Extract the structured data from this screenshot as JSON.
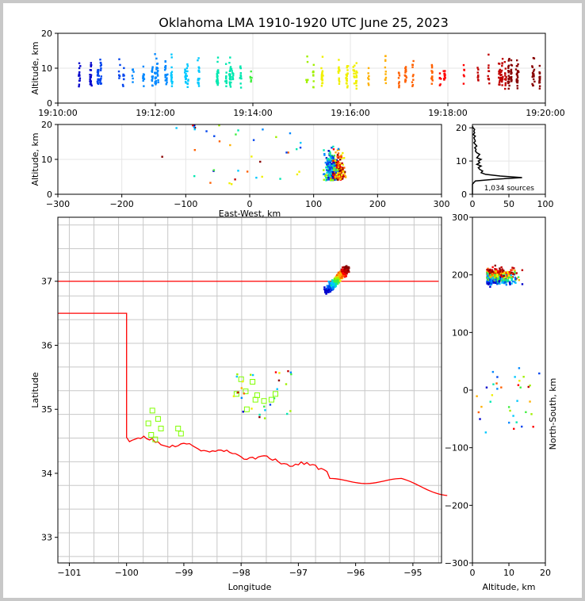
{
  "title": "Oklahoma LMA 1910-1920 UTC June 25, 2023",
  "colors": {
    "time_palette": [
      "#0000cc",
      "#0044ee",
      "#0088ff",
      "#00c8ff",
      "#00e8b0",
      "#40f040",
      "#a0f000",
      "#f0f000",
      "#ffb000",
      "#ff6000",
      "#ff0000",
      "#c00000",
      "#880000"
    ],
    "state_border": "#ff0000",
    "county": "#c8c8c8",
    "station": "#80ff00",
    "histogram": "#000000"
  },
  "chart_data": [
    {
      "id": "time_altitude",
      "type": "scatter",
      "ylabel": "Altitude, km",
      "xlabel": "",
      "xlim": [
        "19:10:00",
        "19:20:00"
      ],
      "ylim": [
        0,
        20
      ],
      "x_ticks": [
        "19:10:00",
        "19:12:00",
        "19:14:00",
        "19:16:00",
        "19:18:00",
        "19:20:00"
      ],
      "y_ticks": [
        0,
        10,
        20
      ],
      "grid": true
    },
    {
      "id": "ew_altitude",
      "type": "scatter",
      "xlabel": "East-West, km",
      "ylabel": "Altitude, km",
      "xlim": [
        -300,
        300
      ],
      "ylim": [
        0,
        20
      ],
      "x_ticks": [
        -300,
        -200,
        -100,
        0,
        100,
        200,
        300
      ],
      "y_ticks": [
        0,
        10,
        20
      ],
      "grid": true
    },
    {
      "id": "altitude_histogram",
      "type": "line",
      "xlim": [
        0,
        100
      ],
      "ylim": [
        0,
        21
      ],
      "x_ticks": [
        0,
        50,
        100
      ],
      "y_ticks": [
        0,
        10,
        20
      ],
      "annotation": "1,034 sources",
      "profile": {
        "altitudes": [
          0,
          1,
          2,
          3,
          3.5,
          4,
          4.5,
          5,
          5.5,
          6,
          6.5,
          7,
          7.5,
          8,
          8.5,
          9,
          9.5,
          10,
          10.5,
          11,
          11.5,
          12,
          12.5,
          13,
          13.5,
          14,
          14.5,
          15,
          15.5,
          16,
          16.5,
          17,
          17.5,
          18,
          18.5,
          19,
          19.5,
          20,
          20.5
        ],
        "counts": [
          0,
          0,
          0,
          0,
          2,
          4,
          30,
          68,
          38,
          18,
          12,
          14,
          10,
          8,
          12,
          6,
          10,
          8,
          12,
          6,
          8,
          10,
          6,
          4,
          5,
          3,
          6,
          4,
          2,
          4,
          3,
          2,
          4,
          1,
          3,
          2,
          3,
          1,
          0
        ]
      }
    },
    {
      "id": "plan_map",
      "type": "scatter",
      "xlabel": "Longitude",
      "ylabel": "Latitude",
      "xlim": [
        -101.2,
        -94.5
      ],
      "ylim": [
        32.6,
        38
      ],
      "x_ticks": [
        -101,
        -100,
        -99,
        -98,
        -97,
        -96,
        -95
      ],
      "y_ticks": [
        33,
        34,
        35,
        36,
        37
      ],
      "stations": [
        {
          "lon": -99.55,
          "lat": 34.98
        },
        {
          "lon": -99.45,
          "lat": 34.85
        },
        {
          "lon": -99.62,
          "lat": 34.78
        },
        {
          "lon": -99.4,
          "lat": 34.7
        },
        {
          "lon": -99.57,
          "lat": 34.6
        },
        {
          "lon": -99.5,
          "lat": 34.53
        },
        {
          "lon": -99.1,
          "lat": 34.7
        },
        {
          "lon": -99.05,
          "lat": 34.62
        },
        {
          "lon": -98.0,
          "lat": 35.47
        },
        {
          "lon": -97.8,
          "lat": 35.43
        },
        {
          "lon": -98.08,
          "lat": 35.24
        },
        {
          "lon": -97.92,
          "lat": 35.28
        },
        {
          "lon": -97.72,
          "lat": 35.22
        },
        {
          "lon": -97.4,
          "lat": 35.24
        },
        {
          "lon": -97.6,
          "lat": 35.13
        },
        {
          "lon": -97.47,
          "lat": 35.15
        },
        {
          "lon": -97.75,
          "lat": 35.15
        },
        {
          "lon": -97.9,
          "lat": 35.0
        }
      ]
    },
    {
      "id": "altitude_northsouth",
      "type": "scatter",
      "xlabel": "Altitude, km",
      "ylabel": "North-South, km",
      "xlim": [
        0,
        20
      ],
      "ylim": [
        -300,
        300
      ],
      "x_ticks": [
        0,
        10,
        20
      ],
      "y_ticks": [
        -300,
        -200,
        -100,
        0,
        100,
        200,
        300
      ]
    }
  ]
}
